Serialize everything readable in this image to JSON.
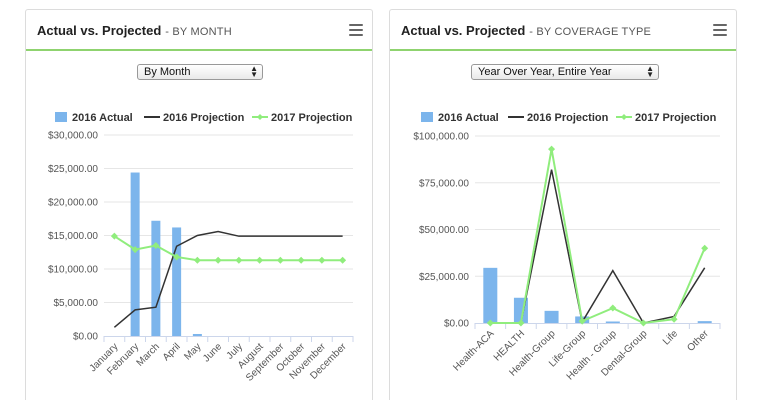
{
  "colors": {
    "actual": "#7cb5ec",
    "projection_2016": "#333333",
    "projection_2017": "#90ed7d",
    "header_accent": "#8fd36f"
  },
  "panels": [
    {
      "title": "Actual vs. Projected",
      "subtitle": "- BY MONTH",
      "menu_icon": "hamburger-icon",
      "select": {
        "value": "By Month"
      }
    },
    {
      "title": "Actual vs. Projected",
      "subtitle": "- BY COVERAGE TYPE",
      "menu_icon": "hamburger-icon",
      "select": {
        "value": "Year Over Year, Entire Year"
      }
    }
  ],
  "chart_data": [
    {
      "type": "bar",
      "categories": [
        "January",
        "February",
        "March",
        "April",
        "May",
        "June",
        "July",
        "August",
        "September",
        "October",
        "November",
        "December"
      ],
      "legend": [
        "2016 Actual",
        "2016 Projection",
        "2017 Projection"
      ],
      "legend_position": "top",
      "ylim": [
        0,
        30000
      ],
      "yticks": [
        "$0.00",
        "$5,000.00",
        "$10,000.00",
        "$15,000.00",
        "$20,000.00",
        "$25,000.00",
        "$30,000.00"
      ],
      "ytick_values": [
        0,
        5000,
        10000,
        15000,
        20000,
        25000,
        30000
      ],
      "grid": true,
      "series": [
        {
          "name": "2016 Actual",
          "kind": "bar",
          "values": [
            0,
            24400,
            17200,
            16200,
            300,
            0,
            0,
            0,
            0,
            0,
            0,
            0
          ]
        },
        {
          "name": "2016 Projection",
          "kind": "line",
          "values": [
            1300,
            3900,
            4300,
            13400,
            15000,
            15600,
            14900,
            14900,
            14900,
            14900,
            14900,
            14900
          ]
        },
        {
          "name": "2017 Projection",
          "kind": "line",
          "values": [
            14900,
            12900,
            13500,
            11800,
            11300,
            11300,
            11300,
            11300,
            11300,
            11300,
            11300,
            11300
          ]
        }
      ]
    },
    {
      "type": "bar",
      "categories": [
        "Health-ACA",
        "HEALTH",
        "Health-Group",
        "Life-Group",
        "Health - Group",
        "Dental-Group",
        "Life",
        "Other"
      ],
      "legend": [
        "2016 Actual",
        "2016 Projection",
        "2017 Projection"
      ],
      "legend_position": "top",
      "ylim": [
        0,
        100000
      ],
      "yticks": [
        "$0.00",
        "$25,000.00",
        "$50,000.00",
        "$75,000.00",
        "$100,000.00"
      ],
      "ytick_values": [
        0,
        25000,
        50000,
        75000,
        100000
      ],
      "grid": true,
      "series": [
        {
          "name": "2016 Actual",
          "kind": "bar",
          "values": [
            29500,
            13500,
            6500,
            3500,
            800,
            0,
            0,
            1000
          ]
        },
        {
          "name": "2016 Projection",
          "kind": "line",
          "values": [
            0,
            0,
            82000,
            500,
            28000,
            0,
            3500,
            29500
          ]
        },
        {
          "name": "2017 Projection",
          "kind": "line",
          "values": [
            0,
            0,
            93000,
            1000,
            8000,
            0,
            2000,
            40000
          ]
        }
      ]
    }
  ]
}
